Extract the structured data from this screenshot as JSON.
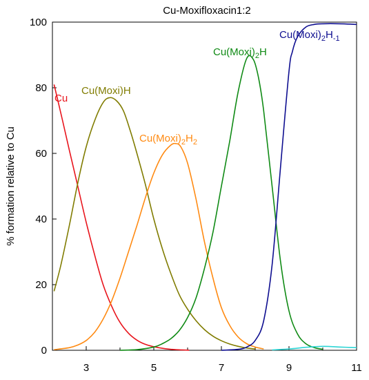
{
  "chart_data": {
    "type": "line",
    "title": "Cu-Moxifloxacin1:2",
    "xlabel": "",
    "ylabel": "% formation relative to Cu",
    "xlim": [
      2,
      11
    ],
    "ylim": [
      0,
      100
    ],
    "xticks": [
      3,
      5,
      7,
      9,
      11
    ],
    "yticks": [
      0,
      20,
      40,
      60,
      80,
      100
    ],
    "grid": false,
    "legend": "inline labels",
    "series": [
      {
        "name": "Cu",
        "label_parts": [
          "Cu"
        ],
        "color": "#e8141c",
        "x": [
          2.05,
          2.3,
          2.5,
          2.75,
          3.0,
          3.25,
          3.5,
          3.75,
          4.0,
          4.25,
          4.5,
          4.75,
          5.0,
          5.25,
          5.5,
          5.75,
          6.05
        ],
        "y": [
          81,
          70,
          61,
          50,
          39,
          29,
          20,
          13.5,
          8.5,
          5.2,
          3.1,
          1.8,
          1.1,
          0.6,
          0.3,
          0.15,
          0.05
        ]
      },
      {
        "name": "Cu(Moxi)H",
        "label_parts": [
          "Cu(Moxi)H"
        ],
        "color": "#807c00",
        "x": [
          2.05,
          2.25,
          2.5,
          2.75,
          3.0,
          3.25,
          3.5,
          3.7,
          3.9,
          4.1,
          4.3,
          4.5,
          4.75,
          5.0,
          5.25,
          5.5,
          5.75,
          6.0,
          6.25,
          6.5,
          6.75,
          7.0,
          7.25,
          7.5,
          7.75,
          8.0
        ],
        "y": [
          18,
          26,
          38,
          51,
          62,
          70,
          75.5,
          77,
          76,
          73,
          67,
          60,
          50.5,
          40,
          31,
          23.5,
          17,
          12.5,
          9,
          6.3,
          4.3,
          2.9,
          1.9,
          1.2,
          0.7,
          0.4
        ]
      },
      {
        "name": "Cu(Moxi)2H2",
        "label_parts": [
          "Cu(Moxi)",
          "2",
          "H",
          "2"
        ],
        "color": "#ff8a12",
        "x": [
          2.05,
          2.5,
          2.75,
          3.0,
          3.25,
          3.5,
          3.75,
          4.0,
          4.25,
          4.5,
          4.75,
          5.0,
          5.25,
          5.5,
          5.65,
          5.8,
          6.0,
          6.25,
          6.5,
          6.75,
          7.0,
          7.25,
          7.5,
          7.75,
          8.0,
          8.25
        ],
        "y": [
          0.2,
          0.8,
          1.6,
          3.0,
          5.5,
          9.5,
          15,
          22,
          30,
          38,
          46.5,
          54,
          59.5,
          62.5,
          63,
          62,
          57,
          46,
          33,
          22,
          13,
          7.5,
          4.0,
          2.0,
          1.0,
          0.4
        ]
      },
      {
        "name": "Cu(Moxi)2H",
        "label_parts": [
          "Cu(Moxi)",
          "2",
          "H"
        ],
        "color": "#0f8a14",
        "x": [
          4.0,
          4.5,
          5.0,
          5.25,
          5.5,
          5.75,
          6.0,
          6.25,
          6.5,
          6.75,
          7.0,
          7.25,
          7.5,
          7.75,
          7.95,
          8.1,
          8.25,
          8.5,
          8.75,
          9.0,
          9.25,
          9.5,
          9.75,
          10.0
        ],
        "y": [
          0,
          0.2,
          1,
          2,
          3.5,
          6,
          10,
          16,
          25,
          36,
          50,
          64,
          79,
          89,
          88.5,
          83,
          73,
          50,
          27,
          12,
          5,
          2,
          0.8,
          0.3
        ]
      },
      {
        "name": "Cu(Moxi)2H-1",
        "label_parts": [
          "Cu(Moxi)",
          "2",
          "H",
          "-1"
        ],
        "color": "#0e0e90",
        "x": [
          7.0,
          7.5,
          7.75,
          8.0,
          8.25,
          8.5,
          8.75,
          9.0,
          9.1,
          9.25,
          9.5,
          9.75,
          10.0,
          10.5,
          11.0
        ],
        "y": [
          0,
          0.3,
          1,
          3,
          9,
          26,
          56,
          85,
          91,
          95.5,
          98.5,
          99.3,
          99.5,
          99.5,
          99.3
        ]
      },
      {
        "name": "",
        "label_parts": [],
        "color": "#2bd4d4",
        "x": [
          8.5,
          9.0,
          9.5,
          10.0,
          10.5,
          11.0
        ],
        "y": [
          0.1,
          0.4,
          0.9,
          1.2,
          1.0,
          0.8
        ]
      }
    ]
  }
}
